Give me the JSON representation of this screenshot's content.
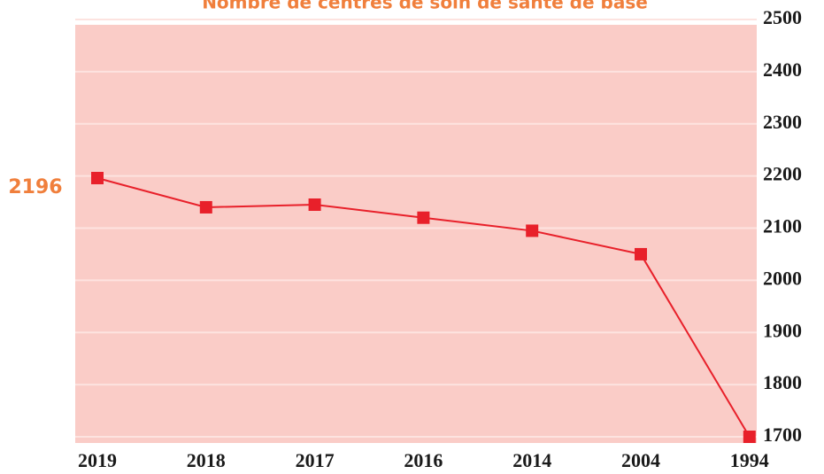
{
  "chart_data": {
    "type": "line",
    "title": "Nombre de centres de soin de santé de base",
    "categories": [
      "2019",
      "2018",
      "2017",
      "2016",
      "2014",
      "2004",
      "1994"
    ],
    "series": [
      {
        "name": "Centres de soin de santé de base",
        "color": "#e8202a",
        "values": [
          2196,
          2140,
          2145,
          2120,
          2095,
          2050,
          1700
        ]
      }
    ],
    "ylim": [
      1700,
      2500
    ],
    "yticks": [
      1700,
      1800,
      1900,
      2000,
      2100,
      2200,
      2300,
      2400,
      2500
    ],
    "grid": true
  }
}
